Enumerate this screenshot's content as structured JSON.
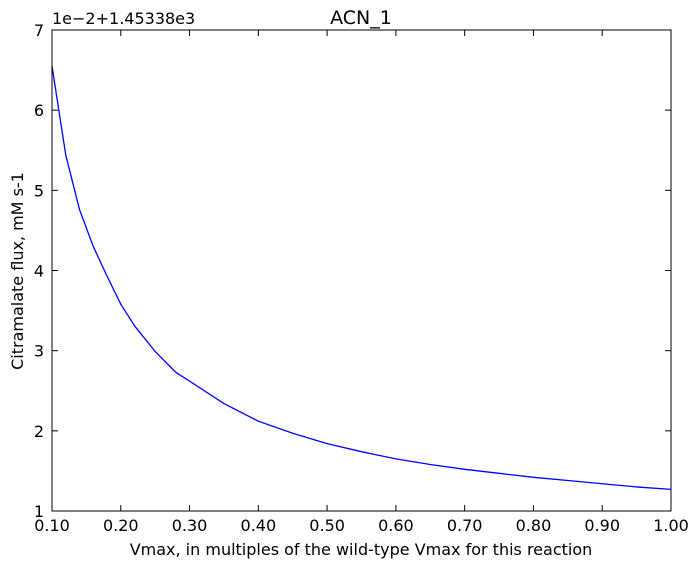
{
  "chart_data": {
    "type": "line",
    "title": "ACN_1",
    "xlabel": "Vmax, in multiples of the wild-type Vmax for this reaction",
    "ylabel": "Citramalate flux, mM s-1",
    "y_offset_text": "1e−2+1.45338e3",
    "xlim": [
      0.1,
      1.0
    ],
    "ylim": [
      1,
      7
    ],
    "x_ticks": [
      "0.10",
      "0.20",
      "0.30",
      "0.40",
      "0.50",
      "0.60",
      "0.70",
      "0.80",
      "0.90",
      "1.00"
    ],
    "y_ticks": [
      "1",
      "2",
      "3",
      "4",
      "5",
      "6",
      "7"
    ],
    "grid": false,
    "line_color": "#0000ff",
    "series": [
      {
        "x": [
          0.1,
          0.12,
          0.14,
          0.16,
          0.18,
          0.2,
          0.22,
          0.25,
          0.28,
          0.3,
          0.35,
          0.4,
          0.45,
          0.5,
          0.55,
          0.6,
          0.65,
          0.7,
          0.75,
          0.8,
          0.85,
          0.9,
          0.95,
          1.0
        ],
        "y": [
          6.55,
          5.44,
          4.76,
          4.3,
          3.93,
          3.58,
          3.31,
          2.99,
          2.73,
          2.62,
          2.34,
          2.12,
          1.97,
          1.84,
          1.74,
          1.65,
          1.58,
          1.52,
          1.47,
          1.42,
          1.38,
          1.34,
          1.3,
          1.27
        ]
      }
    ]
  }
}
